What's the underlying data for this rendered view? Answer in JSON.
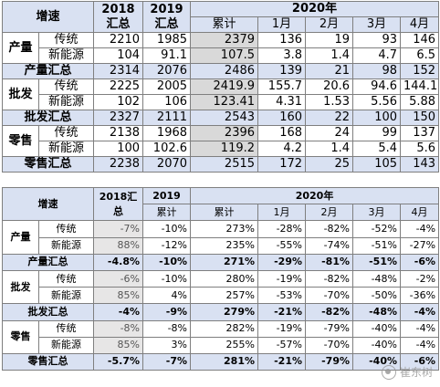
{
  "t1": {
    "corner": "增速",
    "h2018": "2018汇总",
    "h2019": "2019汇总",
    "h2020": "2020年",
    "sub": [
      "累计",
      "1月",
      "2月",
      "3月",
      "4月"
    ],
    "rows": [
      {
        "group": "产量",
        "label": "传统",
        "vals": [
          "2210",
          "1985",
          "2379",
          "136",
          "19",
          "93",
          "146"
        ]
      },
      {
        "group": "",
        "label": "新能源",
        "vals": [
          "104",
          "91.1",
          "107.5",
          "3.8",
          "1.4",
          "4.7",
          "6.5"
        ]
      },
      {
        "sum": "产量汇总",
        "vals": [
          "2314",
          "2076",
          "2486",
          "139",
          "21",
          "98",
          "152"
        ]
      },
      {
        "group": "批发",
        "label": "传统",
        "vals": [
          "2225",
          "2005",
          "2419.9",
          "155.7",
          "20.6",
          "94.6",
          "144.1"
        ]
      },
      {
        "group": "",
        "label": "新能源",
        "vals": [
          "102",
          "106",
          "123.41",
          "4.31",
          "1.53",
          "5.56",
          "5.88"
        ]
      },
      {
        "sum": "批发汇总",
        "vals": [
          "2327",
          "2111",
          "2543",
          "160",
          "22",
          "100",
          "150"
        ]
      },
      {
        "group": "零售",
        "label": "传统",
        "vals": [
          "2138",
          "1968",
          "2396",
          "168",
          "24",
          "99",
          "137"
        ]
      },
      {
        "group": "",
        "label": "新能源",
        "vals": [
          "100",
          "102.6",
          "119.2",
          "4.2",
          "1.4",
          "5.4",
          "5.6"
        ]
      },
      {
        "sum": "零售汇总",
        "vals": [
          "2238",
          "2070",
          "2515",
          "172",
          "25",
          "105",
          "143"
        ]
      }
    ]
  },
  "t2": {
    "corner": "增速",
    "h2018": "2018汇总",
    "h2019": "2019",
    "h2020": "2020年",
    "sub": [
      "累计",
      "累计",
      "1月",
      "2月",
      "3月",
      "4月"
    ],
    "rows": [
      {
        "group": "产量",
        "label": "传统",
        "vals": [
          "-7%",
          "-10%",
          "273%",
          "-28%",
          "-82%",
          "-52%",
          "-4%"
        ]
      },
      {
        "group": "",
        "label": "新能源",
        "vals": [
          "88%",
          "-12%",
          "235%",
          "-55%",
          "-74%",
          "-51%",
          "-27%"
        ]
      },
      {
        "sum": "产量汇总",
        "vals": [
          "-4.8%",
          "-10%",
          "271%",
          "-29%",
          "-81%",
          "-51%",
          "-6%"
        ]
      },
      {
        "group": "批发",
        "label": "传统",
        "vals": [
          "-6%",
          "-10%",
          "280%",
          "-19%",
          "-82%",
          "-48%",
          "-2%"
        ]
      },
      {
        "group": "",
        "label": "新能源",
        "vals": [
          "85%",
          "4%",
          "257%",
          "-53%",
          "-70%",
          "-50%",
          "-36%"
        ]
      },
      {
        "sum": "批发汇总",
        "vals": [
          "-4%",
          "-9%",
          "279%",
          "-21%",
          "-82%",
          "-48%",
          "-4%"
        ]
      },
      {
        "group": "零售",
        "label": "传统",
        "vals": [
          "-8%",
          "-8%",
          "282%",
          "-19%",
          "-79%",
          "-40%",
          "-4%"
        ]
      },
      {
        "group": "",
        "label": "新能源",
        "vals": [
          "85%",
          "3%",
          "255%",
          "-57%",
          "-70%",
          "-40%",
          "-4%"
        ]
      },
      {
        "sum": "零售汇总",
        "vals": [
          "-5.7%",
          "-7%",
          "281%",
          "-21%",
          "-79%",
          "-40%",
          "-6%"
        ]
      }
    ]
  },
  "watermark": "崔东树"
}
